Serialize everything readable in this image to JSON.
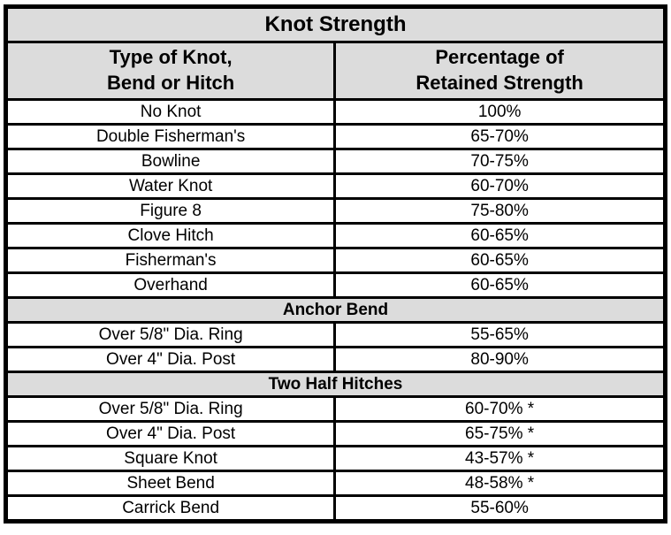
{
  "title": "Knot Strength",
  "columns": [
    {
      "line1": "Type of Knot,",
      "line2": "Bend or Hitch"
    },
    {
      "line1": "Percentage of",
      "line2": "Retained Strength"
    }
  ],
  "rows": [
    {
      "type": "data",
      "knot": "No Knot",
      "strength": "100%"
    },
    {
      "type": "data",
      "knot": "Double Fisherman's",
      "strength": "65-70%"
    },
    {
      "type": "data",
      "knot": "Bowline",
      "strength": "70-75%"
    },
    {
      "type": "data",
      "knot": "Water Knot",
      "strength": "60-70%"
    },
    {
      "type": "data",
      "knot": "Figure 8",
      "strength": "75-80%"
    },
    {
      "type": "data",
      "knot": "Clove Hitch",
      "strength": "60-65%"
    },
    {
      "type": "data",
      "knot": "Fisherman's",
      "strength": "60-65%"
    },
    {
      "type": "data",
      "knot": "Overhand",
      "strength": "60-65%"
    },
    {
      "type": "section",
      "label": "Anchor Bend"
    },
    {
      "type": "data",
      "knot": "Over 5/8\" Dia. Ring",
      "strength": "55-65%"
    },
    {
      "type": "data",
      "knot": "Over 4\" Dia. Post",
      "strength": "80-90%"
    },
    {
      "type": "section",
      "label": "Two Half Hitches"
    },
    {
      "type": "data",
      "knot": "Over 5/8\" Dia. Ring",
      "strength": "60-70% *"
    },
    {
      "type": "data",
      "knot": "Over 4\" Dia. Post",
      "strength": "65-75% *"
    },
    {
      "type": "data",
      "knot": "Square Knot",
      "strength": "43-57% *"
    },
    {
      "type": "data",
      "knot": "Sheet Bend",
      "strength": "48-58% *"
    },
    {
      "type": "data",
      "knot": "Carrick Bend",
      "strength": "55-60%"
    }
  ],
  "colors": {
    "header_bg": "#dcdcdc",
    "row_bg": "#ffffff",
    "border": "#000000",
    "text": "#000000"
  }
}
